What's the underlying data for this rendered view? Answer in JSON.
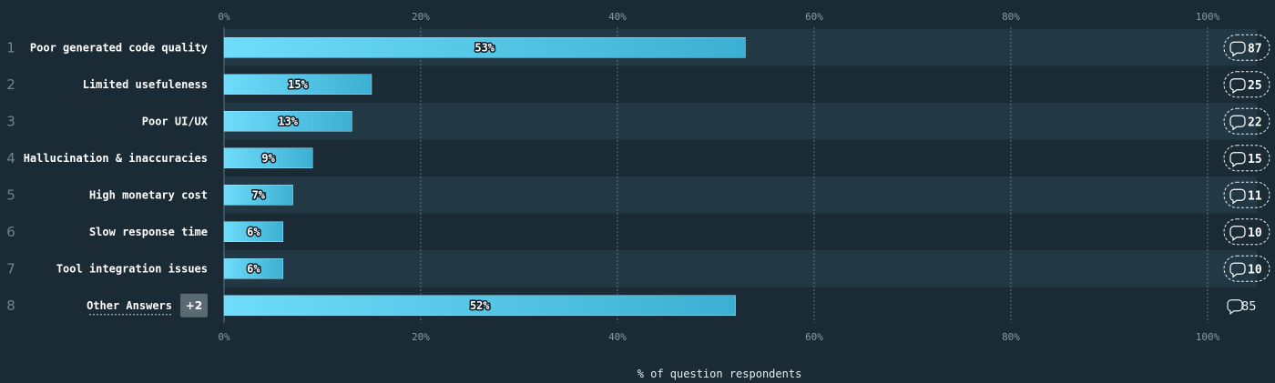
{
  "chart_data": {
    "type": "bar",
    "orientation": "horizontal",
    "categories": [
      "Poor generated code quality",
      "Limited usefuleness",
      "Poor UI/UX",
      "Hallucination & inaccuracies",
      "High monetary cost",
      "Slow response time",
      "Tool integration issues",
      "Other Answers"
    ],
    "ranks": [
      "1",
      "2",
      "3",
      "4",
      "5",
      "6",
      "7",
      "8"
    ],
    "values": [
      53,
      15,
      13,
      9,
      7,
      6,
      6,
      52
    ],
    "value_labels": [
      "53%",
      "15%",
      "13%",
      "9%",
      "7%",
      "6%",
      "6%",
      "52%"
    ],
    "comment_counts": [
      "87",
      "25",
      "22",
      "15",
      "11",
      "10",
      "10",
      "85"
    ],
    "other_extra_badge": "+2",
    "xlim": [
      0,
      100
    ],
    "ticks": [
      "0%",
      "20%",
      "40%",
      "60%",
      "80%",
      "100%"
    ],
    "xlabel": "% of question respondents",
    "grid": true
  },
  "colors": {
    "background": "#1b2b35",
    "row_band": "#223845",
    "bar_start": "#6fdcfb",
    "bar_end": "#3cb0d2",
    "grid": "#5d7380",
    "badge": "#5a6a72"
  },
  "icons": {
    "comment": "speech-bubble-icon"
  }
}
